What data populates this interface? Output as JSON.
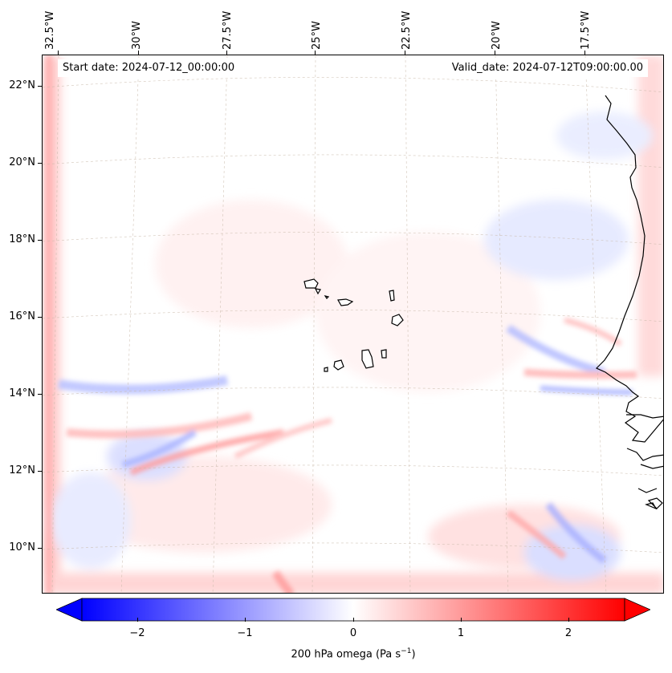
{
  "map": {
    "projection": "lambert-conformal",
    "lon_range": [
      -33.0,
      -15.5
    ],
    "lat_range": [
      8.9,
      22.8
    ],
    "field_name": "200 hPa omega",
    "coastline_color": "#000000",
    "grid_color": "#c8b8a8"
  },
  "info": {
    "start_date": "Start date: 2024-07-12_00:00:00",
    "valid_date": "Valid_date: 2024-07-12T09:00:00.00"
  },
  "lon_labels": [
    "32.5°W",
    "30°W",
    "27.5°W",
    "25°W",
    "22.5°W",
    "20°W",
    "17.5°W"
  ],
  "lat_labels": [
    "22°N",
    "20°N",
    "18°N",
    "16°N",
    "14°N",
    "12°N",
    "10°N"
  ],
  "colorbar": {
    "label": "200 hPa omega (Pa s",
    "label_sup": "−1",
    "label_end": ")",
    "ticks": [
      "−2",
      "−1",
      "0",
      "1",
      "2"
    ],
    "vmin": -2.75,
    "vmax": 2.75,
    "cmap": "bwr",
    "extend": "both",
    "min_color": "#0000ff",
    "mid_color": "#ffffff",
    "max_color": "#ff0000"
  }
}
